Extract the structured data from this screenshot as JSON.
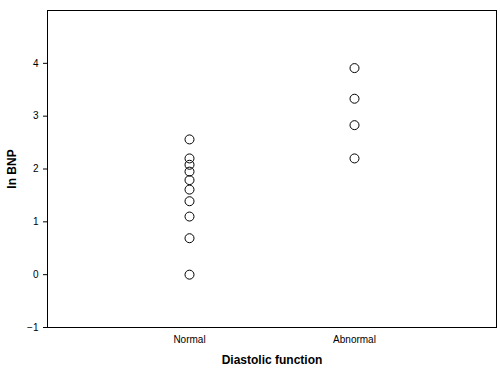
{
  "chart_data": {
    "type": "scatter",
    "x_label": "Diastolic function",
    "y_label": "ln BNP",
    "categories": [
      "Normal",
      "Abnormal"
    ],
    "values": [
      [
        2.56,
        2.2,
        2.08,
        1.95,
        1.79,
        1.61,
        1.39,
        1.1,
        0.69,
        0.0
      ],
      [
        3.91,
        3.33,
        2.83,
        2.2
      ]
    ],
    "ylim": [
      -1,
      5
    ],
    "yticks": [
      -1,
      0,
      1,
      2,
      3,
      4
    ],
    "marker": "circle",
    "color": "#000000",
    "grid": false
  }
}
